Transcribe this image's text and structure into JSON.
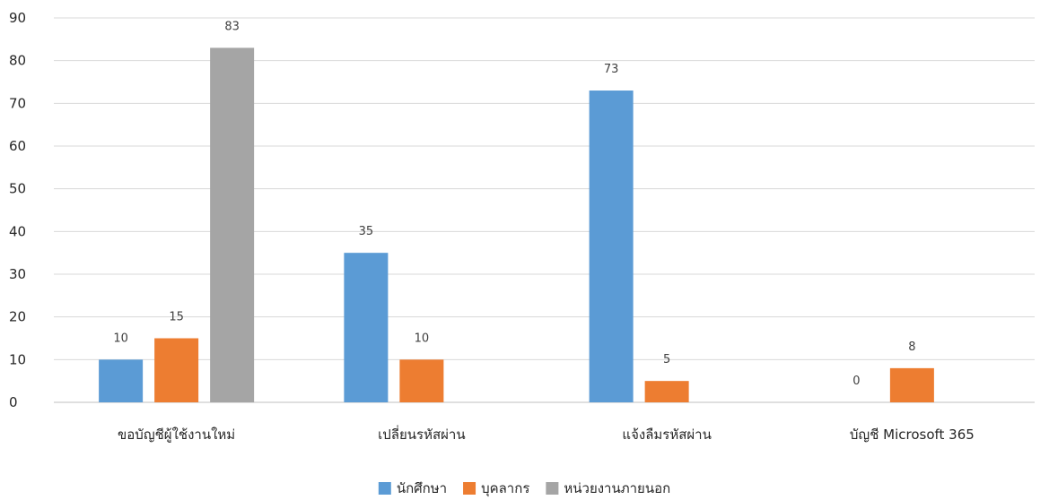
{
  "chart_data": {
    "type": "bar",
    "categories": [
      "ขอบัญชีผู้ใช้งานใหม่",
      "เปลี่ยนรหัสผ่าน",
      "แจ้งลืมรหัสผ่าน",
      "บัญชี Microsoft 365"
    ],
    "series": [
      {
        "name": "นักศึกษา",
        "values": [
          10,
          35,
          73,
          0
        ],
        "color": "#5B9BD5"
      },
      {
        "name": "บุคลากร",
        "values": [
          15,
          10,
          5,
          8
        ],
        "color": "#ED7D31"
      },
      {
        "name": "หน่วยงานภายนอก",
        "values": [
          83,
          null,
          null,
          null
        ],
        "color": "#A5A5A5"
      }
    ],
    "ylim": [
      0,
      90
    ],
    "yticks": [
      0,
      10,
      20,
      30,
      40,
      50,
      60,
      70,
      80,
      90
    ],
    "grid": true,
    "legend": "bottom",
    "data_labels": true
  }
}
